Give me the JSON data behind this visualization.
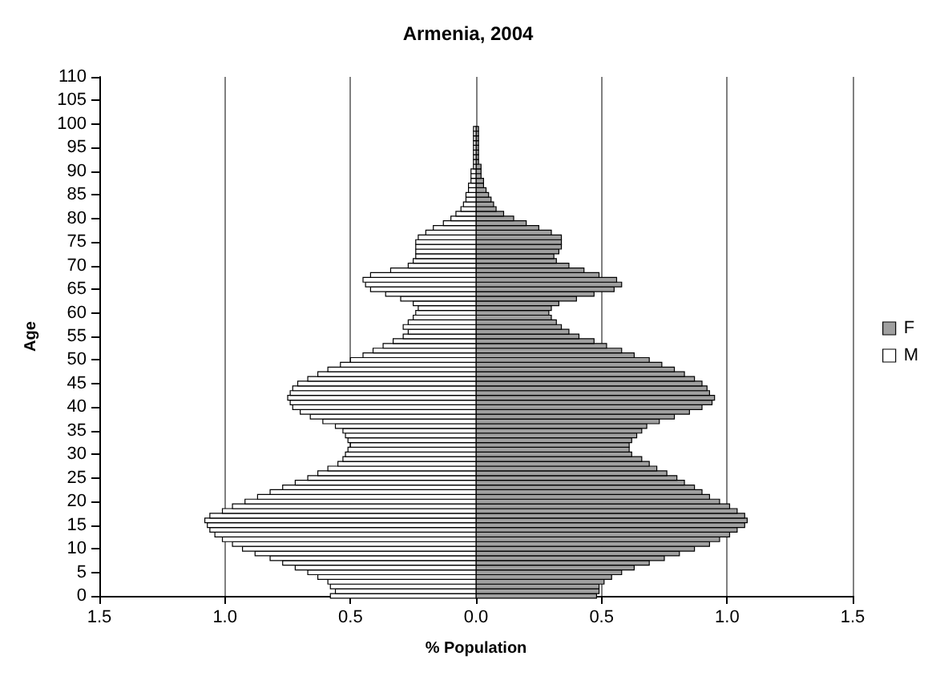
{
  "chart_data": {
    "type": "bar",
    "orientation": "horizontal",
    "title": "Armenia, 2004",
    "xlabel": "% Population",
    "ylabel": "Age",
    "x": [
      0,
      1,
      2,
      3,
      4,
      5,
      6,
      7,
      8,
      9,
      10,
      11,
      12,
      13,
      14,
      15,
      16,
      17,
      18,
      19,
      20,
      21,
      22,
      23,
      24,
      25,
      26,
      27,
      28,
      29,
      30,
      31,
      32,
      33,
      34,
      35,
      36,
      37,
      38,
      39,
      40,
      41,
      42,
      43,
      44,
      45,
      46,
      47,
      48,
      49,
      50,
      51,
      52,
      53,
      54,
      55,
      56,
      57,
      58,
      59,
      60,
      61,
      62,
      63,
      64,
      65,
      66,
      67,
      68,
      69,
      70,
      71,
      72,
      73,
      74,
      75,
      76,
      77,
      78,
      79,
      80,
      81,
      82,
      83,
      84,
      85,
      86,
      87,
      88,
      89,
      90,
      91,
      92,
      93,
      94,
      95,
      96,
      97,
      98,
      99
    ],
    "series": [
      {
        "name": "F",
        "color": "#a0a0a0",
        "values": [
          0.48,
          0.49,
          0.49,
          0.51,
          0.54,
          0.58,
          0.63,
          0.69,
          0.75,
          0.81,
          0.87,
          0.93,
          0.97,
          1.01,
          1.04,
          1.07,
          1.08,
          1.07,
          1.04,
          1.01,
          0.97,
          0.93,
          0.9,
          0.87,
          0.83,
          0.8,
          0.76,
          0.72,
          0.69,
          0.66,
          0.62,
          0.61,
          0.61,
          0.62,
          0.64,
          0.66,
          0.68,
          0.73,
          0.79,
          0.85,
          0.9,
          0.94,
          0.95,
          0.93,
          0.92,
          0.9,
          0.87,
          0.83,
          0.79,
          0.74,
          0.69,
          0.63,
          0.58,
          0.52,
          0.47,
          0.41,
          0.37,
          0.34,
          0.32,
          0.3,
          0.29,
          0.3,
          0.33,
          0.4,
          0.47,
          0.55,
          0.58,
          0.56,
          0.49,
          0.43,
          0.37,
          0.32,
          0.31,
          0.33,
          0.34,
          0.34,
          0.34,
          0.3,
          0.25,
          0.2,
          0.15,
          0.11,
          0.08,
          0.07,
          0.06,
          0.05,
          0.04,
          0.03,
          0.03,
          0.02,
          0.02,
          0.02,
          0.01,
          0.01,
          0.01,
          0.01,
          0.01,
          0.01,
          0.01,
          0.01
        ]
      },
      {
        "name": "M",
        "color": "#ffffff",
        "values": [
          -0.58,
          -0.56,
          -0.58,
          -0.59,
          -0.63,
          -0.67,
          -0.72,
          -0.77,
          -0.82,
          -0.88,
          -0.93,
          -0.97,
          -1.01,
          -1.04,
          -1.06,
          -1.07,
          -1.08,
          -1.06,
          -1.01,
          -0.97,
          -0.92,
          -0.87,
          -0.82,
          -0.77,
          -0.72,
          -0.67,
          -0.63,
          -0.59,
          -0.55,
          -0.53,
          -0.52,
          -0.51,
          -0.5,
          -0.51,
          -0.52,
          -0.53,
          -0.56,
          -0.61,
          -0.66,
          -0.7,
          -0.73,
          -0.74,
          -0.75,
          -0.74,
          -0.73,
          -0.71,
          -0.67,
          -0.63,
          -0.59,
          -0.54,
          -0.5,
          -0.45,
          -0.41,
          -0.37,
          -0.33,
          -0.29,
          -0.27,
          -0.29,
          -0.27,
          -0.25,
          -0.24,
          -0.23,
          -0.25,
          -0.3,
          -0.36,
          -0.42,
          -0.44,
          -0.45,
          -0.42,
          -0.34,
          -0.27,
          -0.25,
          -0.24,
          -0.24,
          -0.24,
          -0.24,
          -0.23,
          -0.2,
          -0.17,
          -0.13,
          -0.1,
          -0.08,
          -0.06,
          -0.05,
          -0.04,
          -0.04,
          -0.03,
          -0.03,
          -0.02,
          -0.02,
          -0.02,
          -0.01,
          -0.01,
          -0.01,
          -0.01,
          -0.01,
          -0.01,
          -0.01,
          -0.01,
          -0.01
        ]
      }
    ],
    "xlim": [
      -1.5,
      1.5
    ],
    "xticks": [
      {
        "value": -1.5,
        "label": "1.5"
      },
      {
        "value": -1,
        "label": "1.0"
      },
      {
        "value": -0.5,
        "label": "0.5"
      },
      {
        "value": 0,
        "label": "0.0"
      },
      {
        "value": 0.5,
        "label": "0.5"
      },
      {
        "value": 1,
        "label": "1.0"
      },
      {
        "value": 1.5,
        "label": "1.5"
      }
    ],
    "ylim": [
      0,
      110
    ],
    "yticks": [
      0,
      5,
      10,
      15,
      20,
      25,
      30,
      35,
      40,
      45,
      50,
      55,
      60,
      65,
      70,
      75,
      80,
      85,
      90,
      95,
      100,
      105,
      110
    ],
    "grid": "x",
    "legend": "right",
    "stacked": true
  }
}
